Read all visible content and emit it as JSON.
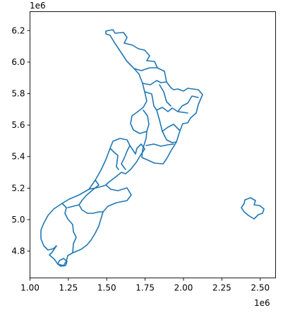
{
  "chart_data": {
    "type": "map",
    "title": "",
    "xlabel": "",
    "ylabel": "",
    "x_offset_label": "1e6",
    "y_offset_label": "1e6",
    "xlim": [
      1.0,
      2.6
    ],
    "ylim": [
      4.63,
      6.32
    ],
    "xticks": [
      1.0,
      1.25,
      1.5,
      1.75,
      2.0,
      2.25,
      2.5
    ],
    "yticks": [
      4.8,
      5.0,
      5.2,
      5.4,
      5.6,
      5.8,
      6.0,
      6.2
    ],
    "xtick_labels": [
      "1.00",
      "1.25",
      "1.50",
      "1.75",
      "2.00",
      "2.25",
      "2.50"
    ],
    "ytick_labels": [
      "4.8",
      "5.0",
      "5.2",
      "5.4",
      "5.6",
      "5.8",
      "6.0",
      "6.2"
    ],
    "line_color": "#1f77b4",
    "grid": false,
    "legend": "none"
  }
}
